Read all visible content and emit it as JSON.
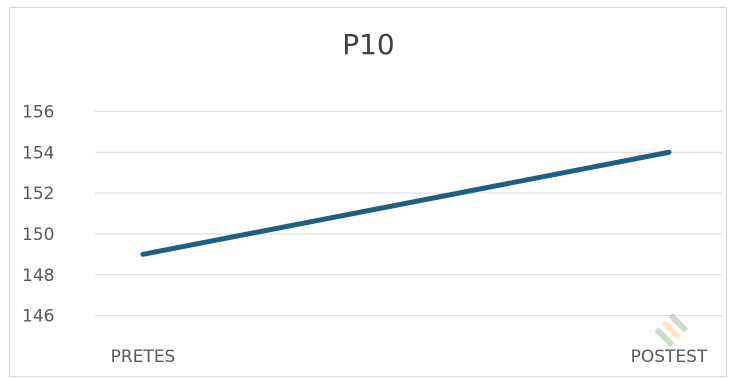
{
  "chart_data": {
    "type": "line",
    "title": "P10",
    "categories": [
      "PRETES",
      "POSTEST"
    ],
    "series": [
      {
        "values": [
          149,
          154
        ],
        "color": "#1f5f7f"
      }
    ],
    "y_ticks": [
      "146",
      "148",
      "150",
      "152",
      "154",
      "156"
    ],
    "ylim": [
      145,
      157
    ],
    "grid": true,
    "legend": "none"
  }
}
